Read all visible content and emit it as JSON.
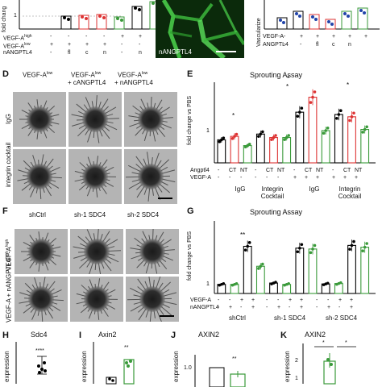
{
  "top_left": {
    "ylabel": "fold chang",
    "tick": "1",
    "rows": [
      {
        "label": "VEGF-A",
        "sup": "high",
        "marks": [
          "-",
          "-",
          "-",
          "-",
          "+",
          "+"
        ]
      },
      {
        "label": "VEGF-A",
        "sup": "low",
        "marks": [
          "+",
          "+",
          "+",
          "+",
          "-",
          "-"
        ]
      },
      {
        "label": "nANGPTL4",
        "sup": "",
        "marks": [
          "-",
          "fl",
          "c",
          "n",
          "-",
          "n"
        ]
      }
    ]
  },
  "top_mid": {
    "label": "nANGPTL4"
  },
  "top_right": {
    "ylabel": "Vascularize",
    "rows": [
      {
        "label": "VEGF-A",
        "marks": [
          "-",
          "+",
          "+",
          "+",
          "+",
          "+"
        ]
      },
      {
        "label": "ANGPTL4",
        "marks": [
          "-",
          "-",
          "fl",
          "c",
          "n",
          ""
        ]
      }
    ]
  },
  "panel_D": {
    "letter": "D",
    "col_headers": [
      "VEGF-A",
      "VEGF-A",
      "VEGF-A"
    ],
    "col_sups": [
      "low",
      "low",
      "low"
    ],
    "col_sub": [
      "",
      "+ cANGPTL4",
      "+ nANGPTL4"
    ],
    "row_labels": [
      "IgG",
      "integrin cocktail"
    ]
  },
  "panel_E": {
    "letter": "E",
    "title": "Sprouting Assay",
    "ylabel": "fold change vs PBS",
    "row_labels": [
      "Angptl4",
      "VEGF-A"
    ],
    "angptl4_marks": [
      "-",
      "CT",
      "NT",
      "-",
      "CT",
      "NT",
      "-",
      "CT",
      "NT",
      "-",
      "CT",
      "NT"
    ],
    "vegf_marks": [
      "-",
      "-",
      "-",
      "-",
      "-",
      "-",
      "+",
      "+",
      "+",
      "+",
      "+",
      "+"
    ],
    "groups": [
      "IgG",
      "Integrin Cocktail",
      "IgG",
      "Integrin Cocktail"
    ],
    "stars": [
      "*",
      "*",
      "*",
      "*"
    ]
  },
  "panel_F": {
    "letter": "F",
    "col_headers": [
      "shCtrl",
      "sh-1 SDC4",
      "sh-2 SDC4"
    ],
    "row_labels": [
      "VEGF-A",
      "VEGF-A + nANGPTL4"
    ],
    "row_sups": [
      "high",
      "high"
    ]
  },
  "panel_G": {
    "letter": "G",
    "title": "Sprouting Assay",
    "ylabel": "fold change vs PBS",
    "row_labels": [
      "VEGF-A",
      "nANGPTL4"
    ],
    "vegf_marks": [
      "-",
      "-",
      "+",
      "+",
      "-",
      "-",
      "+",
      "+",
      "-",
      "-",
      "+",
      "+"
    ],
    "nangptl4_marks": [
      "-",
      "+",
      "-",
      "+",
      "-",
      "+",
      "-",
      "+",
      "-",
      "+",
      "-",
      "+"
    ],
    "groups": [
      "shCtrl",
      "sh-1 SDC4",
      "sh-2 SDC4"
    ],
    "star": "**"
  },
  "panel_H": {
    "letter": "H",
    "title": "Sdc4",
    "ylabel": "expression",
    "star": "****"
  },
  "panel_I": {
    "letter": "I",
    "title": "Axin2",
    "ylabel": "expression",
    "star": "**"
  },
  "panel_J": {
    "letter": "J",
    "title": "AXIN2",
    "ylabel": "expression",
    "star": "**",
    "tick": "1.0"
  },
  "panel_K": {
    "letter": "K",
    "title": "AXIN2",
    "ylabel": "expression",
    "stars": [
      "*",
      "*"
    ],
    "ticks": [
      "2",
      "1"
    ]
  },
  "chart_data": [
    {
      "type": "bar",
      "title": "Sprouting Assay",
      "ylabel": "fold change vs PBS",
      "categories": [
        "IgG -",
        "IgG CT",
        "IgG NT",
        "Integrin -",
        "Integrin CT",
        "Integrin NT",
        "IgG VEGF -",
        "IgG VEGF CT",
        "IgG VEGF NT",
        "Integrin VEGF -",
        "Integrin VEGF CT",
        "Integrin VEGF NT"
      ],
      "values": [
        1.0,
        1.15,
        0.75,
        1.25,
        1.1,
        1.1,
        2.2,
        2.85,
        1.4,
        2.1,
        2.0,
        1.45
      ],
      "ylim": [
        0,
        3.5
      ]
    },
    {
      "type": "bar",
      "title": "Sprouting Assay",
      "ylabel": "fold change vs PBS",
      "categories": [
        "shCtrl -/-",
        "shCtrl -/+",
        "shCtrl +/-",
        "shCtrl +/+",
        "sh-1 -/-",
        "sh-1 -/+",
        "sh-1 +/-",
        "sh-1 +/+",
        "sh-2 -/-",
        "sh-2 -/+",
        "sh-2 +/-",
        "sh-2 +/+"
      ],
      "values": [
        1.0,
        1.0,
        5.2,
        3.0,
        1.15,
        1.0,
        5.0,
        4.9,
        1.05,
        1.1,
        5.3,
        5.1
      ],
      "ylim": [
        0,
        8
      ]
    }
  ]
}
